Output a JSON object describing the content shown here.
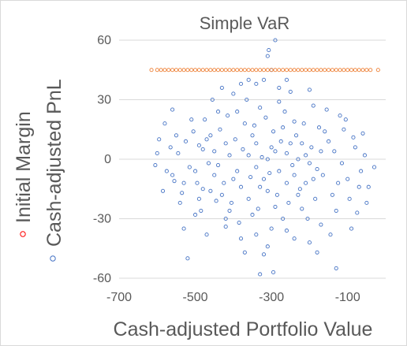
{
  "chart_data": {
    "type": "scatter",
    "title": "Simple VaR",
    "xlabel": "Cash-adjusted Portfolio Value",
    "xlim": [
      -700,
      0
    ],
    "ylim": [
      -60,
      60
    ],
    "xticks": [
      -700,
      -500,
      -300,
      -100
    ],
    "yticks": [
      -60,
      -30,
      0,
      30,
      60
    ],
    "xtick_labels": [
      "-700",
      "-500",
      "-300",
      "-100"
    ],
    "ytick_labels": [
      "-60",
      "-30",
      "0",
      "30",
      "60"
    ],
    "grid": "horizontal",
    "legend_placement": "left, vertical",
    "series": [
      {
        "name": "Cash-adjusted PnL",
        "color": "#4472C4",
        "marker": "hollow-circle",
        "points": [
          [
            -520,
            -50
          ],
          [
            -330,
            -58
          ],
          [
            -295,
            -57
          ],
          [
            -130,
            -55
          ],
          [
            -370,
            -47
          ],
          [
            -310,
            -44
          ],
          [
            -180,
            -47
          ],
          [
            -600,
            3
          ],
          [
            -580,
            18
          ],
          [
            -560,
            -8
          ],
          [
            -540,
            -22
          ],
          [
            -500,
            -28
          ],
          [
            -480,
            -15
          ],
          [
            -460,
            12
          ],
          [
            -440,
            24
          ],
          [
            -420,
            -30
          ],
          [
            -400,
            33
          ],
          [
            -380,
            38
          ],
          [
            -360,
            -20
          ],
          [
            -340,
            8
          ],
          [
            -320,
            40
          ],
          [
            -300,
            -35
          ],
          [
            -280,
            29
          ],
          [
            -260,
            -12
          ],
          [
            -240,
            19
          ],
          [
            -220,
            -25
          ],
          [
            -200,
            35
          ],
          [
            -180,
            -5
          ],
          [
            -160,
            14
          ],
          [
            -140,
            -18
          ],
          [
            -120,
            22
          ],
          [
            -100,
            -10
          ],
          [
            -80,
            6
          ],
          [
            -60,
            13
          ],
          [
            -30,
            -4
          ],
          [
            -50,
            -22
          ],
          [
            -560,
            25
          ],
          [
            -530,
            -35
          ],
          [
            -470,
            -38
          ],
          [
            -430,
            36
          ],
          [
            -410,
            2
          ],
          [
            -390,
            -6
          ],
          [
            -370,
            18
          ],
          [
            -350,
            -28
          ],
          [
            -330,
            26
          ],
          [
            -310,
            -16
          ],
          [
            -290,
            4
          ],
          [
            -270,
            -30
          ],
          [
            -250,
            34
          ],
          [
            -230,
            0
          ],
          [
            -210,
            -12
          ],
          [
            -190,
            27
          ],
          [
            -170,
            -33
          ],
          [
            -150,
            9
          ],
          [
            -130,
            -26
          ],
          [
            -110,
            15
          ],
          [
            -90,
            -35
          ],
          [
            -70,
            -14
          ],
          [
            -490,
            7
          ],
          [
            -450,
            -8
          ],
          [
            -435,
            15
          ],
          [
            -445,
            -21
          ],
          [
            -455,
            30
          ],
          [
            -465,
            -2
          ],
          [
            -475,
            20
          ],
          [
            -485,
            -26
          ],
          [
            -495,
            -12
          ],
          [
            -505,
            14
          ],
          [
            -515,
            -4
          ],
          [
            -525,
            9
          ],
          [
            -535,
            -17
          ],
          [
            -545,
            3
          ],
          [
            -555,
            -11
          ],
          [
            -565,
            6
          ],
          [
            -575,
            -6
          ],
          [
            -585,
            -16
          ],
          [
            -595,
            10
          ],
          [
            -605,
            -3
          ],
          [
            -425,
            -12
          ],
          [
            -415,
            22
          ],
          [
            -405,
            -22
          ],
          [
            -395,
            10
          ],
          [
            -385,
            -32
          ],
          [
            -375,
            5
          ],
          [
            -365,
            30
          ],
          [
            -355,
            -9
          ],
          [
            -345,
            17
          ],
          [
            -335,
            -25
          ],
          [
            -325,
            1
          ],
          [
            -315,
            21
          ],
          [
            -305,
            -7
          ],
          [
            -295,
            14
          ],
          [
            -285,
            -18
          ],
          [
            -275,
            9
          ],
          [
            -265,
            24
          ],
          [
            -255,
            -22
          ],
          [
            -245,
            -3
          ],
          [
            -235,
            12
          ],
          [
            -225,
            -15
          ],
          [
            -215,
            18
          ],
          [
            -205,
            -30
          ],
          [
            -195,
            6
          ],
          [
            -185,
            -20
          ],
          [
            -175,
            16
          ],
          [
            -165,
            -8
          ],
          [
            -155,
            25
          ],
          [
            -145,
            -38
          ],
          [
            -135,
            4
          ],
          [
            -125,
            -12
          ],
          [
            -115,
            -2
          ],
          [
            -105,
            20
          ],
          [
            -95,
            -20
          ],
          [
            -85,
            11
          ],
          [
            -75,
            -27
          ],
          [
            -65,
            -6
          ],
          [
            -55,
            2
          ],
          [
            -45,
            -14
          ],
          [
            -420,
            8
          ],
          [
            -440,
            -3
          ],
          [
            -460,
            -16
          ],
          [
            -480,
            5
          ],
          [
            -500,
            -6
          ],
          [
            -380,
            -14
          ],
          [
            -360,
            2
          ],
          [
            -340,
            -4
          ],
          [
            -320,
            -10
          ],
          [
            -300,
            6
          ],
          [
            -280,
            -6
          ],
          [
            -260,
            3
          ],
          [
            -240,
            -8
          ],
          [
            -220,
            8
          ],
          [
            -200,
            -2
          ],
          [
            -350,
            12
          ],
          [
            -330,
            -14
          ],
          [
            -310,
            0
          ],
          [
            -290,
            -24
          ],
          [
            -270,
            16
          ],
          [
            -250,
            8
          ],
          [
            -230,
            -18
          ],
          [
            -210,
            2
          ],
          [
            -190,
            -10
          ],
          [
            -170,
            4
          ],
          [
            -400,
            -10
          ],
          [
            -390,
            24
          ],
          [
            -410,
            -26
          ],
          [
            -430,
            -18
          ],
          [
            -450,
            4
          ],
          [
            -470,
            10
          ],
          [
            -490,
            -20
          ],
          [
            -510,
            20
          ],
          [
            -530,
            -12
          ],
          [
            -550,
            12
          ],
          [
            -360,
            40
          ],
          [
            -300,
            45
          ],
          [
            -310,
            52
          ],
          [
            -307,
            55
          ],
          [
            -290,
            60
          ],
          [
            -340,
            38
          ],
          [
            -280,
            36
          ],
          [
            -260,
            40
          ],
          [
            -420,
            -34
          ],
          [
            -380,
            -40
          ],
          [
            -340,
            -38
          ],
          [
            -260,
            -36
          ],
          [
            -240,
            -40
          ],
          [
            -200,
            -42
          ],
          [
            -320,
            -48
          ]
        ]
      },
      {
        "name": "Initial Margin",
        "color": "#ED7D31",
        "marker": "hollow-circle",
        "points": [
          [
            -615,
            45
          ],
          [
            -600,
            45
          ],
          [
            -590,
            45
          ],
          [
            -580,
            45
          ],
          [
            -570,
            45
          ],
          [
            -560,
            45
          ],
          [
            -550,
            45
          ],
          [
            -540,
            45
          ],
          [
            -530,
            45
          ],
          [
            -520,
            45
          ],
          [
            -510,
            45
          ],
          [
            -500,
            45
          ],
          [
            -490,
            45
          ],
          [
            -480,
            45
          ],
          [
            -470,
            45
          ],
          [
            -460,
            45
          ],
          [
            -450,
            45
          ],
          [
            -440,
            45
          ],
          [
            -430,
            45
          ],
          [
            -420,
            45
          ],
          [
            -410,
            45
          ],
          [
            -400,
            45
          ],
          [
            -390,
            45
          ],
          [
            -380,
            45
          ],
          [
            -370,
            45
          ],
          [
            -360,
            45
          ],
          [
            -350,
            45
          ],
          [
            -340,
            45
          ],
          [
            -330,
            45
          ],
          [
            -320,
            45
          ],
          [
            -310,
            45
          ],
          [
            -300,
            45
          ],
          [
            -290,
            45
          ],
          [
            -280,
            45
          ],
          [
            -270,
            45
          ],
          [
            -260,
            45
          ],
          [
            -250,
            45
          ],
          [
            -240,
            45
          ],
          [
            -230,
            45
          ],
          [
            -220,
            45
          ],
          [
            -210,
            45
          ],
          [
            -200,
            45
          ],
          [
            -190,
            45
          ],
          [
            -180,
            45
          ],
          [
            -170,
            45
          ],
          [
            -160,
            45
          ],
          [
            -150,
            45
          ],
          [
            -140,
            45
          ],
          [
            -130,
            45
          ],
          [
            -120,
            45
          ],
          [
            -110,
            45
          ],
          [
            -100,
            45
          ],
          [
            -90,
            45
          ],
          [
            -80,
            45
          ],
          [
            -70,
            45
          ],
          [
            -60,
            45
          ],
          [
            -50,
            45
          ],
          [
            -40,
            45
          ],
          [
            -20,
            45
          ]
        ]
      }
    ]
  }
}
